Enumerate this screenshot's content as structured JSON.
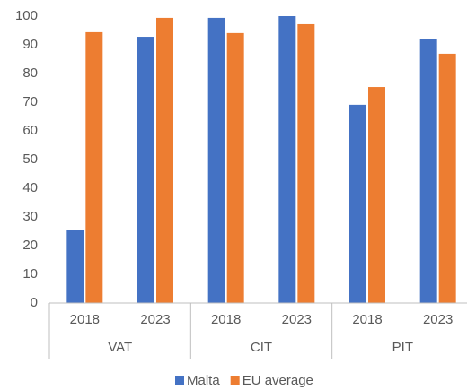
{
  "chart_data": {
    "type": "bar",
    "categories": [
      "2018",
      "2023",
      "2018",
      "2023",
      "2018",
      "2023"
    ],
    "groups": [
      "VAT",
      "CIT",
      "PIT"
    ],
    "series": [
      {
        "name": "Malta",
        "color": "#4472c4",
        "values": [
          25.5,
          92.8,
          99.4,
          100,
          69.1,
          91.9
        ]
      },
      {
        "name": "EU average",
        "color": "#ed7d31",
        "values": [
          94.4,
          99.4,
          94.1,
          97.2,
          75.3,
          86.9
        ]
      }
    ],
    "ylim": [
      0,
      100
    ],
    "yticks": [
      0,
      10,
      20,
      30,
      40,
      50,
      60,
      70,
      80,
      90,
      100
    ],
    "grid": false,
    "legend": "bottom"
  }
}
